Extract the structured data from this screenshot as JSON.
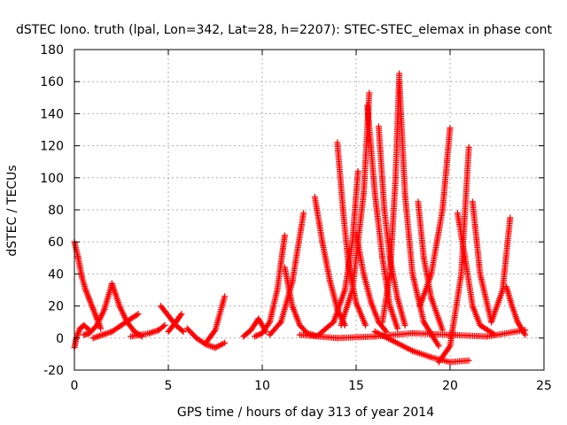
{
  "chart_data": {
    "type": "scatter",
    "title": "dSTEC Iono. truth (lpal, Lon=342, Lat=28, h=2207): STEC-STEC_elemax in phase cont",
    "xlabel": "GPS time / hours of day 313 of year 2014",
    "ylabel": "dSTEC  / TECUs",
    "xlim": [
      0,
      25
    ],
    "ylim": [
      -20,
      180
    ],
    "xticks": [
      0,
      5,
      10,
      15,
      20,
      25
    ],
    "yticks": [
      -20,
      0,
      20,
      40,
      60,
      80,
      100,
      120,
      140,
      160,
      180
    ],
    "xtick_labels": [
      "0",
      "5",
      "10",
      "15",
      "20",
      "25"
    ],
    "ytick_labels": [
      "-20",
      "0",
      "20",
      "40",
      "60",
      "80",
      "100",
      "120",
      "140",
      "160",
      "180"
    ],
    "grid": true,
    "marker": "plus",
    "color": "#ff0000",
    "series_tracks": [
      {
        "x": [
          0.0,
          0.2,
          0.4,
          0.6,
          0.8,
          1.0,
          1.2,
          1.4
        ],
        "y": [
          60,
          50,
          38,
          30,
          24,
          18,
          12,
          6
        ]
      },
      {
        "x": [
          0.0,
          0.1,
          0.3,
          0.5,
          0.8
        ],
        "y": [
          -6,
          0,
          6,
          8,
          5
        ]
      },
      {
        "x": [
          0.5,
          0.8,
          1.2,
          1.6,
          2.0
        ],
        "y": [
          2,
          3,
          8,
          18,
          34
        ]
      },
      {
        "x": [
          2.0,
          2.4,
          2.8,
          3.2,
          3.6
        ],
        "y": [
          34,
          20,
          10,
          4,
          1
        ]
      },
      {
        "x": [
          1.0,
          1.5,
          2.0,
          2.5,
          3.0,
          3.4
        ],
        "y": [
          0,
          2,
          4,
          8,
          12,
          15
        ]
      },
      {
        "x": [
          3.0,
          3.5,
          4.0,
          4.5,
          4.8
        ],
        "y": [
          1,
          2,
          3,
          5,
          8
        ]
      },
      {
        "x": [
          4.6,
          5.0,
          5.4,
          5.8
        ],
        "y": [
          20,
          14,
          8,
          4
        ]
      },
      {
        "x": [
          5.0,
          5.4,
          5.7
        ],
        "y": [
          4,
          10,
          15
        ]
      },
      {
        "x": [
          6.0,
          6.5,
          7.0,
          7.5,
          8.0
        ],
        "y": [
          6,
          0,
          -4,
          -6,
          -3
        ]
      },
      {
        "x": [
          7.0,
          7.5,
          8.0
        ],
        "y": [
          -3,
          5,
          26
        ]
      },
      {
        "x": [
          9.0,
          9.4,
          9.8,
          10.2
        ],
        "y": [
          1,
          5,
          12,
          4
        ]
      },
      {
        "x": [
          9.6,
          10.0,
          10.4,
          10.8,
          11.2
        ],
        "y": [
          1,
          3,
          10,
          30,
          64
        ]
      },
      {
        "x": [
          11.2,
          11.6,
          12.0,
          12.4,
          13.0
        ],
        "y": [
          44,
          20,
          8,
          3,
          1
        ]
      },
      {
        "x": [
          10.4,
          11.0,
          11.6,
          12.2
        ],
        "y": [
          2,
          10,
          35,
          78
        ]
      },
      {
        "x": [
          12.8,
          13.2,
          13.6,
          14.0,
          14.4
        ],
        "y": [
          88,
          60,
          36,
          18,
          8
        ]
      },
      {
        "x": [
          14.0,
          14.3,
          14.6,
          15.0,
          15.5
        ],
        "y": [
          122,
          80,
          45,
          22,
          8
        ]
      },
      {
        "x": [
          13.0,
          13.8,
          14.4,
          14.8,
          15.1
        ],
        "y": [
          2,
          10,
          30,
          60,
          104
        ]
      },
      {
        "x": [
          15.0,
          15.4,
          15.8,
          16.2,
          16.6
        ],
        "y": [
          65,
          40,
          22,
          10,
          4
        ]
      },
      {
        "x": [
          14.2,
          14.8,
          15.4,
          15.7
        ],
        "y": [
          8,
          30,
          90,
          153
        ]
      },
      {
        "x": [
          15.6,
          16.0,
          16.4,
          16.8,
          17.2
        ],
        "y": [
          145,
          90,
          50,
          20,
          6
        ]
      },
      {
        "x": [
          16.2,
          16.5,
          16.8,
          17.2,
          17.6
        ],
        "y": [
          132,
          80,
          50,
          25,
          8
        ]
      },
      {
        "x": [
          16.4,
          16.8,
          17.1,
          17.3
        ],
        "y": [
          10,
          40,
          100,
          165
        ]
      },
      {
        "x": [
          17.3,
          17.6,
          18.0,
          18.6,
          19.4
        ],
        "y": [
          160,
          90,
          40,
          10,
          -5
        ]
      },
      {
        "x": [
          18.3,
          18.6,
          19.0,
          19.6
        ],
        "y": [
          85,
          50,
          25,
          5
        ]
      },
      {
        "x": [
          18.4,
          19.0,
          19.6,
          20.0
        ],
        "y": [
          20,
          40,
          80,
          131
        ]
      },
      {
        "x": [
          19.4,
          20.0,
          20.6,
          21.0
        ],
        "y": [
          -15,
          -5,
          40,
          119
        ]
      },
      {
        "x": [
          20.4,
          20.8,
          21.2,
          21.6,
          22.4
        ],
        "y": [
          78,
          50,
          20,
          8,
          2
        ]
      },
      {
        "x": [
          21.2,
          21.6,
          22.2,
          22.8,
          23.2
        ],
        "y": [
          85,
          40,
          10,
          30,
          75
        ]
      },
      {
        "x": [
          23.0,
          23.3,
          23.6,
          24.0
        ],
        "y": [
          32,
          20,
          10,
          2
        ]
      },
      {
        "x": [
          16.0,
          17.0,
          18.0,
          19.0,
          20.0,
          21.0
        ],
        "y": [
          4,
          -2,
          -8,
          -12,
          -15,
          -14
        ]
      },
      {
        "x": [
          12.0,
          14.0,
          16.0,
          18.0,
          20.0,
          22.0,
          24.0
        ],
        "y": [
          2,
          0,
          1,
          3,
          2,
          1,
          5
        ]
      }
    ]
  }
}
